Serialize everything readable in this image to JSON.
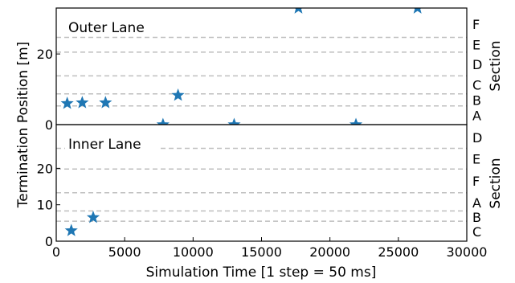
{
  "chart_data": {
    "type": "scatter",
    "xlabel": "Simulation Time [1 step = 50 ms]",
    "ylabel": "Termination Position [m]",
    "right_label": "Section",
    "xlim": [
      0,
      30000
    ],
    "x_ticks": [
      0,
      5000,
      10000,
      15000,
      20000,
      25000,
      30000
    ],
    "x_tick_labels": [
      "0",
      "5000",
      "10000",
      "15000",
      "20000",
      "25000",
      "30000"
    ],
    "marker": "star",
    "marker_color": "#1f77b4",
    "boundary_line_color": "#bfbfbf",
    "grid": false,
    "panels": [
      {
        "id": "outer",
        "label": "Outer Lane",
        "ylim": [
          0,
          33
        ],
        "y_ticks": [
          0,
          20
        ],
        "y_tick_labels": [
          "0",
          "20"
        ],
        "section_boundaries": [
          5.3,
          8.7,
          13.8,
          20.5,
          24.7
        ],
        "section_labels": [
          {
            "letter": "F",
            "y": 28.5
          },
          {
            "letter": "E",
            "y": 22.6
          },
          {
            "letter": "D",
            "y": 17.1
          },
          {
            "letter": "C",
            "y": 11.3
          },
          {
            "letter": "B",
            "y": 6.9
          },
          {
            "letter": "A",
            "y": 2.6
          }
        ],
        "points": [
          {
            "x": 800,
            "y": 6.0
          },
          {
            "x": 1900,
            "y": 6.2
          },
          {
            "x": 3600,
            "y": 6.2
          },
          {
            "x": 7800,
            "y": 0
          },
          {
            "x": 8900,
            "y": 8.3
          },
          {
            "x": 13000,
            "y": 0
          },
          {
            "x": 17700,
            "y": 33
          },
          {
            "x": 21900,
            "y": 0
          },
          {
            "x": 26400,
            "y": 33
          }
        ]
      },
      {
        "id": "inner",
        "label": "Inner Lane",
        "ylim": [
          0,
          32
        ],
        "y_ticks": [
          0,
          10,
          20
        ],
        "y_tick_labels": [
          "0",
          "10",
          "20"
        ],
        "section_boundaries": [
          5.5,
          8.3,
          13.3,
          19.8,
          25.5
        ],
        "section_labels": [
          {
            "letter": "D",
            "y": 28.5
          },
          {
            "letter": "E",
            "y": 22.6
          },
          {
            "letter": "F",
            "y": 16.5
          },
          {
            "letter": "A",
            "y": 10.6
          },
          {
            "letter": "B",
            "y": 6.6
          },
          {
            "letter": "C",
            "y": 2.6
          }
        ],
        "points": [
          {
            "x": 1100,
            "y": 2.9
          },
          {
            "x": 2700,
            "y": 6.5
          }
        ]
      }
    ]
  }
}
